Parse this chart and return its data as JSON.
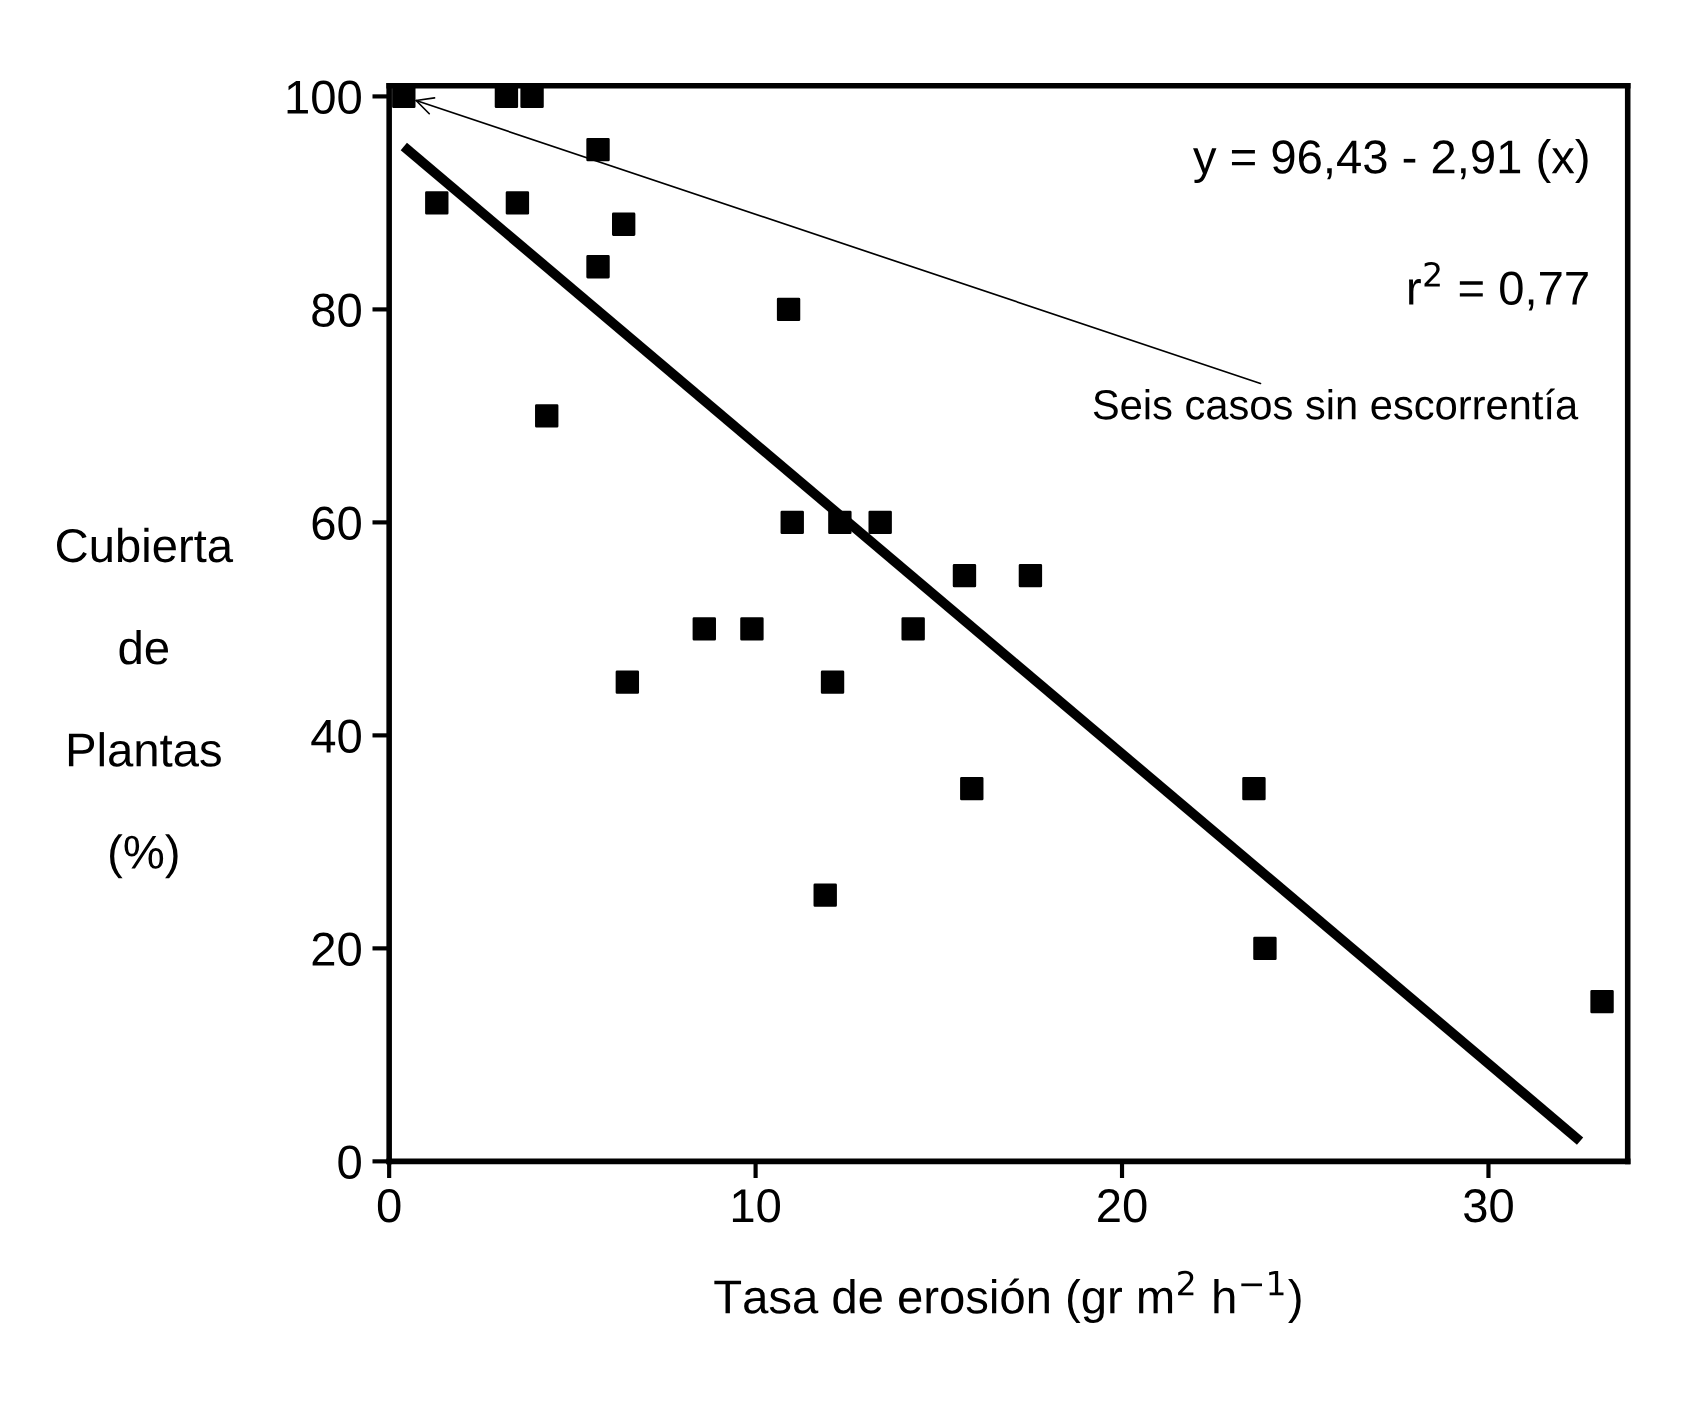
{
  "chart_data": {
    "type": "scatter",
    "xlabel": "Tasa de erosión (gr m$^{2}$ h$^{−1}$)",
    "ylabel": "Cubierta\nde\nPlantas\n(%)",
    "marker": "square",
    "grid": false,
    "xlim": [
      0,
      33.8
    ],
    "ylim": [
      0,
      101
    ],
    "xticks": [
      0,
      10,
      20,
      30
    ],
    "yticks": [
      0,
      20,
      40,
      60,
      80,
      100
    ],
    "series": [
      {
        "color": "#000000",
        "x": [
          0.4,
          3.2,
          3.9,
          1.3,
          3.5,
          5.7,
          6.4,
          5.7,
          4.3,
          10.9,
          11.0,
          12.3,
          13.4,
          15.7,
          17.5,
          8.6,
          9.9,
          14.3,
          6.5,
          12.1,
          15.9,
          11.9,
          23.6,
          23.9,
          33.1
        ],
        "values": [
          100,
          100,
          100,
          90,
          90,
          95,
          88,
          84,
          70,
          80,
          60,
          60,
          60,
          55,
          55,
          50,
          50,
          50,
          45,
          45,
          35,
          25,
          35,
          20,
          15
        ]
      },
      {
        "type": "line",
        "color": "#000000",
        "line_style": "solid",
        "marker": "none",
        "x": [
          0.4,
          32.5
        ],
        "values": [
          95.3,
          1.9
        ]
      }
    ],
    "annotations": [
      "y = 96,43 - 2,91 (x)",
      "r$^{2}$ = 0,77",
      {
        "text": "Seis casos sin escorrentía",
        "x": 0.4,
        "y": 100
      }
    ]
  }
}
